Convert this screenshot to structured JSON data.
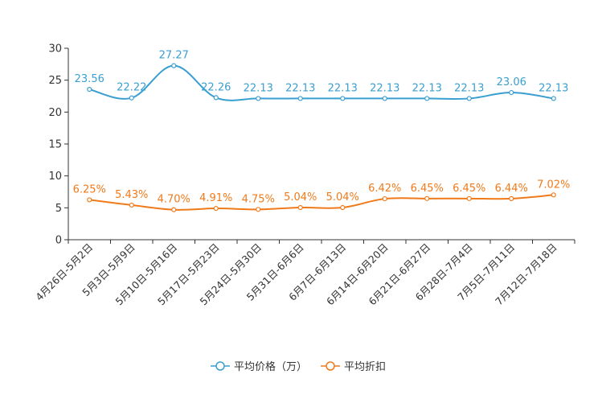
{
  "chart_data": {
    "type": "line",
    "title": "",
    "xlabel": "",
    "ylabel": "",
    "ylim": [
      0,
      30
    ],
    "yticks": [
      0,
      5,
      10,
      15,
      20,
      25,
      30
    ],
    "grid": false,
    "legend_position": "bottom-center",
    "categories": [
      "4月26日-5月2日",
      "5月3日-5月9日",
      "5月10日-5月16日",
      "5月17日-5月23日",
      "5月24日-5月30日",
      "5月31日-6月6日",
      "6月7日-6月13日",
      "6月14日-6月20日",
      "6月21日-6月27日",
      "6月28日-7月4日",
      "7月5日-7月11日",
      "7月12日-7月18日"
    ],
    "series": [
      {
        "name": "平均价格（万）",
        "color": "#3a9fd0",
        "values": [
          23.56,
          22.22,
          27.27,
          22.26,
          22.13,
          22.13,
          22.13,
          22.13,
          22.13,
          22.13,
          23.06,
          22.13
        ],
        "labels": [
          "23.56",
          "22.22",
          "27.27",
          "22.26",
          "22.13",
          "22.13",
          "22.13",
          "22.13",
          "22.13",
          "22.13",
          "23.06",
          "22.13"
        ]
      },
      {
        "name": "平均折扣",
        "color": "#f07a1a",
        "values": [
          6.25,
          5.43,
          4.7,
          4.91,
          4.75,
          5.04,
          5.04,
          6.42,
          6.45,
          6.45,
          6.44,
          7.02
        ],
        "labels": [
          "6.25%",
          "5.43%",
          "4.70%",
          "4.91%",
          "4.75%",
          "5.04%",
          "5.04%",
          "6.42%",
          "6.45%",
          "6.45%",
          "6.44%",
          "7.02%"
        ]
      }
    ]
  }
}
